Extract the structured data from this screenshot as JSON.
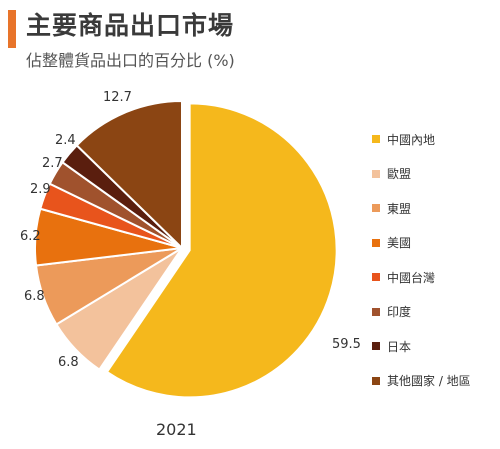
{
  "header": {
    "title": "主要商品出口市場",
    "subtitle": "佔整體貨品出口的百分比 (%)",
    "accent_color": "#e8742a"
  },
  "chart_data": {
    "type": "pie",
    "title": "主要商品出口市場",
    "subtitle": "佔整體貨品出口的百分比 (%)",
    "year": "2021",
    "legend_position": "right",
    "slices": [
      {
        "label": "中國內地",
        "value": 59.5,
        "display": "59.5",
        "color": "#f5b81c"
      },
      {
        "label": "歐盟",
        "value": 6.8,
        "display": "6.8",
        "color": "#f3c29c"
      },
      {
        "label": "東盟",
        "value": 6.8,
        "display": "6.8",
        "color": "#ec9a5a"
      },
      {
        "label": "美國",
        "value": 6.2,
        "display": "6.2",
        "color": "#e8710e"
      },
      {
        "label": "中國台灣",
        "value": 2.9,
        "display": "2.9",
        "color": "#e8541c"
      },
      {
        "label": "印度",
        "value": 2.7,
        "display": "2.7",
        "color": "#a0522d"
      },
      {
        "label": "日本",
        "value": 2.4,
        "display": "2.4",
        "color": "#5a1e0e"
      },
      {
        "label": "其他國家 / 地區",
        "value": 12.7,
        "display": "12.7",
        "color": "#8b4513"
      }
    ]
  }
}
